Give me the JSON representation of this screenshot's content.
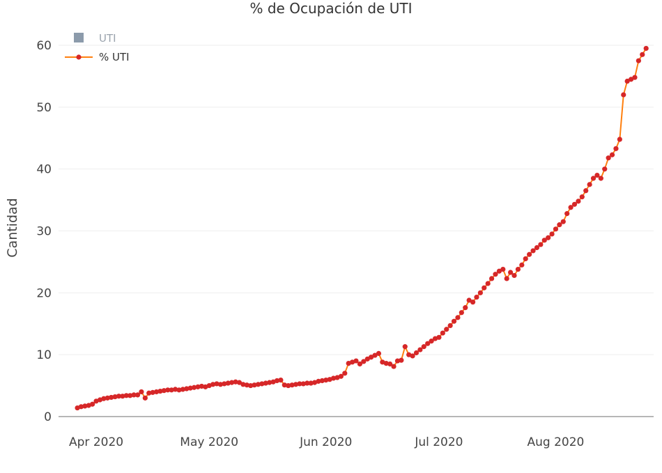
{
  "chart_data": {
    "type": "line",
    "title": "% de Ocupación de UTI",
    "xlabel": "",
    "ylabel": "Cantidad",
    "ylim": [
      0,
      60
    ],
    "yticks": [
      0,
      10,
      20,
      30,
      40,
      50,
      60
    ],
    "xticks": [
      {
        "date": "2020-04-01",
        "label": "Apr 2020"
      },
      {
        "date": "2020-05-01",
        "label": "May 2020"
      },
      {
        "date": "2020-06-01",
        "label": "Jun 2020"
      },
      {
        "date": "2020-07-01",
        "label": "Jul 2020"
      },
      {
        "date": "2020-08-01",
        "label": "Aug 2020"
      }
    ],
    "xlim": [
      "2020-03-22",
      "2020-08-27"
    ],
    "grid": true,
    "legend": {
      "position": "top-left",
      "entries": [
        {
          "name": "UTI",
          "style": "bar",
          "color": "#8c9bab",
          "visible": false
        },
        {
          "name": "% UTI",
          "style": "line-marker",
          "color": "#d62728",
          "line_color": "#ff7f0e"
        }
      ]
    },
    "series": [
      {
        "name": "% UTI",
        "marker_color": "#d62728",
        "line_color": "#ff7f0e",
        "points": [
          [
            "2020-03-27",
            1.4
          ],
          [
            "2020-03-28",
            1.6
          ],
          [
            "2020-03-29",
            1.7
          ],
          [
            "2020-03-30",
            1.8
          ],
          [
            "2020-03-31",
            2.0
          ],
          [
            "2020-04-01",
            2.5
          ],
          [
            "2020-04-02",
            2.7
          ],
          [
            "2020-04-03",
            2.9
          ],
          [
            "2020-04-04",
            3.0
          ],
          [
            "2020-04-05",
            3.1
          ],
          [
            "2020-04-06",
            3.2
          ],
          [
            "2020-04-07",
            3.3
          ],
          [
            "2020-04-08",
            3.3
          ],
          [
            "2020-04-09",
            3.4
          ],
          [
            "2020-04-10",
            3.4
          ],
          [
            "2020-04-11",
            3.5
          ],
          [
            "2020-04-12",
            3.5
          ],
          [
            "2020-04-13",
            4.0
          ],
          [
            "2020-04-14",
            3.0
          ],
          [
            "2020-04-15",
            3.8
          ],
          [
            "2020-04-16",
            3.9
          ],
          [
            "2020-04-17",
            4.0
          ],
          [
            "2020-04-18",
            4.1
          ],
          [
            "2020-04-19",
            4.2
          ],
          [
            "2020-04-20",
            4.3
          ],
          [
            "2020-04-21",
            4.3
          ],
          [
            "2020-04-22",
            4.4
          ],
          [
            "2020-04-23",
            4.3
          ],
          [
            "2020-04-24",
            4.4
          ],
          [
            "2020-04-25",
            4.5
          ],
          [
            "2020-04-26",
            4.6
          ],
          [
            "2020-04-27",
            4.7
          ],
          [
            "2020-04-28",
            4.8
          ],
          [
            "2020-04-29",
            4.9
          ],
          [
            "2020-04-30",
            4.8
          ],
          [
            "2020-05-01",
            5.0
          ],
          [
            "2020-05-02",
            5.2
          ],
          [
            "2020-05-03",
            5.3
          ],
          [
            "2020-05-04",
            5.2
          ],
          [
            "2020-05-05",
            5.3
          ],
          [
            "2020-05-06",
            5.4
          ],
          [
            "2020-05-07",
            5.5
          ],
          [
            "2020-05-08",
            5.6
          ],
          [
            "2020-05-09",
            5.5
          ],
          [
            "2020-05-10",
            5.2
          ],
          [
            "2020-05-11",
            5.1
          ],
          [
            "2020-05-12",
            5.0
          ],
          [
            "2020-05-13",
            5.1
          ],
          [
            "2020-05-14",
            5.2
          ],
          [
            "2020-05-15",
            5.3
          ],
          [
            "2020-05-16",
            5.4
          ],
          [
            "2020-05-17",
            5.5
          ],
          [
            "2020-05-18",
            5.6
          ],
          [
            "2020-05-19",
            5.8
          ],
          [
            "2020-05-20",
            5.9
          ],
          [
            "2020-05-21",
            5.1
          ],
          [
            "2020-05-22",
            5.0
          ],
          [
            "2020-05-23",
            5.1
          ],
          [
            "2020-05-24",
            5.2
          ],
          [
            "2020-05-25",
            5.3
          ],
          [
            "2020-05-26",
            5.3
          ],
          [
            "2020-05-27",
            5.4
          ],
          [
            "2020-05-28",
            5.4
          ],
          [
            "2020-05-29",
            5.5
          ],
          [
            "2020-05-30",
            5.7
          ],
          [
            "2020-05-31",
            5.8
          ],
          [
            "2020-06-01",
            5.9
          ],
          [
            "2020-06-02",
            6.0
          ],
          [
            "2020-06-03",
            6.2
          ],
          [
            "2020-06-04",
            6.3
          ],
          [
            "2020-06-05",
            6.5
          ],
          [
            "2020-06-06",
            7.0
          ],
          [
            "2020-06-07",
            8.6
          ],
          [
            "2020-06-08",
            8.8
          ],
          [
            "2020-06-09",
            9.0
          ],
          [
            "2020-06-10",
            8.5
          ],
          [
            "2020-06-11",
            8.9
          ],
          [
            "2020-06-12",
            9.3
          ],
          [
            "2020-06-13",
            9.6
          ],
          [
            "2020-06-14",
            9.9
          ],
          [
            "2020-06-15",
            10.2
          ],
          [
            "2020-06-16",
            8.8
          ],
          [
            "2020-06-17",
            8.6
          ],
          [
            "2020-06-18",
            8.5
          ],
          [
            "2020-06-19",
            8.1
          ],
          [
            "2020-06-20",
            9.0
          ],
          [
            "2020-06-21",
            9.1
          ],
          [
            "2020-06-22",
            11.3
          ],
          [
            "2020-06-23",
            10.0
          ],
          [
            "2020-06-24",
            9.8
          ],
          [
            "2020-06-25",
            10.3
          ],
          [
            "2020-06-26",
            10.8
          ],
          [
            "2020-06-27",
            11.3
          ],
          [
            "2020-06-28",
            11.8
          ],
          [
            "2020-06-29",
            12.2
          ],
          [
            "2020-06-30",
            12.6
          ],
          [
            "2020-07-01",
            12.8
          ],
          [
            "2020-07-02",
            13.5
          ],
          [
            "2020-07-03",
            14.1
          ],
          [
            "2020-07-04",
            14.7
          ],
          [
            "2020-07-05",
            15.4
          ],
          [
            "2020-07-06",
            16.0
          ],
          [
            "2020-07-07",
            16.8
          ],
          [
            "2020-07-08",
            17.6
          ],
          [
            "2020-07-09",
            18.8
          ],
          [
            "2020-07-10",
            18.5
          ],
          [
            "2020-07-11",
            19.3
          ],
          [
            "2020-07-12",
            20.0
          ],
          [
            "2020-07-13",
            20.8
          ],
          [
            "2020-07-14",
            21.5
          ],
          [
            "2020-07-15",
            22.3
          ],
          [
            "2020-07-16",
            23.0
          ],
          [
            "2020-07-17",
            23.5
          ],
          [
            "2020-07-18",
            23.8
          ],
          [
            "2020-07-19",
            22.3
          ],
          [
            "2020-07-20",
            23.3
          ],
          [
            "2020-07-21",
            22.8
          ],
          [
            "2020-07-22",
            23.8
          ],
          [
            "2020-07-23",
            24.5
          ],
          [
            "2020-07-24",
            25.5
          ],
          [
            "2020-07-25",
            26.2
          ],
          [
            "2020-07-26",
            26.8
          ],
          [
            "2020-07-27",
            27.3
          ],
          [
            "2020-07-28",
            27.8
          ],
          [
            "2020-07-29",
            28.5
          ],
          [
            "2020-07-30",
            28.9
          ],
          [
            "2020-07-31",
            29.5
          ],
          [
            "2020-08-01",
            30.3
          ],
          [
            "2020-08-02",
            31.0
          ],
          [
            "2020-08-03",
            31.5
          ],
          [
            "2020-08-04",
            32.8
          ],
          [
            "2020-08-05",
            33.8
          ],
          [
            "2020-08-06",
            34.3
          ],
          [
            "2020-08-07",
            34.8
          ],
          [
            "2020-08-08",
            35.5
          ],
          [
            "2020-08-09",
            36.5
          ],
          [
            "2020-08-10",
            37.5
          ],
          [
            "2020-08-11",
            38.5
          ],
          [
            "2020-08-12",
            39.0
          ],
          [
            "2020-08-13",
            38.5
          ],
          [
            "2020-08-14",
            40.0
          ],
          [
            "2020-08-15",
            41.8
          ],
          [
            "2020-08-16",
            42.3
          ],
          [
            "2020-08-17",
            43.3
          ],
          [
            "2020-08-18",
            44.8
          ],
          [
            "2020-08-19",
            52.0
          ],
          [
            "2020-08-20",
            54.2
          ],
          [
            "2020-08-21",
            54.5
          ],
          [
            "2020-08-22",
            54.8
          ],
          [
            "2020-08-23",
            57.5
          ],
          [
            "2020-08-24",
            58.5
          ],
          [
            "2020-08-25",
            59.5
          ]
        ]
      }
    ]
  }
}
